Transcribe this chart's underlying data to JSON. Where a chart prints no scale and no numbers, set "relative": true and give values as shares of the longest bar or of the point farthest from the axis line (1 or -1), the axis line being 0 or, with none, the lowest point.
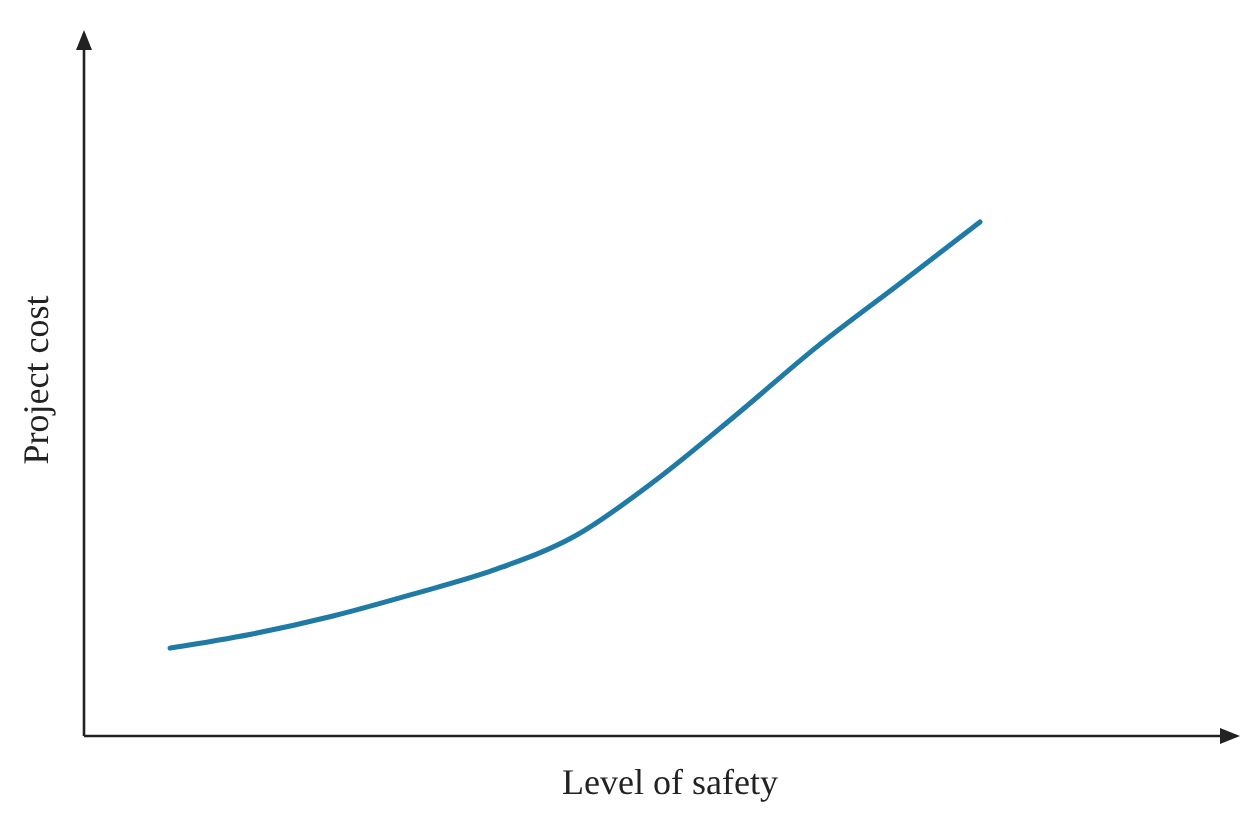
{
  "chart_data": {
    "type": "line",
    "xlabel": "Level of safety",
    "ylabel": "Project cost",
    "relative": true,
    "categories": [
      null,
      null,
      null,
      null,
      null,
      null,
      null,
      null,
      null,
      null,
      null
    ],
    "series": [
      {
        "color": "#1f7aa6",
        "values": [
          0.171,
          0.198,
          0.233,
          0.276,
          0.323,
          0.389,
          0.498,
          0.626,
          0.759,
          0.879,
          1
        ]
      }
    ],
    "marker": "none",
    "line_style": "solid"
  }
}
